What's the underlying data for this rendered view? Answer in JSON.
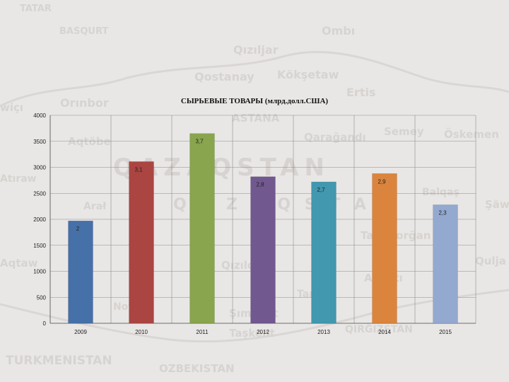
{
  "background": {
    "place_names": [
      "TATAR",
      "BASQURT",
      "Ombı",
      "Qızıljar",
      "Qostanay",
      "Kökşetaw",
      "Ertis",
      "Orınbor",
      "ASTANA",
      "Aqtöbe",
      "Qarağandı",
      "Semey",
      "Öskemen",
      "QAZAQSTAN",
      "Q A Z A Q S T A N",
      "Arał",
      "Taldıqorğan",
      "Almatı",
      "Qızılorda",
      "Şımkent",
      "Taşkent",
      "TURKMENISTAN",
      "OZBEKISTAN",
      "QIRĞIZSTAN",
      "Balqaş",
      "Qulja",
      "Şäw",
      "Atıraw",
      "Aqtaw",
      "Novi",
      "Taraz",
      "wiçı"
    ]
  },
  "chart_data": {
    "type": "bar",
    "title": "СЫРЬЕВЫЕ ТОВАРЫ (млрд.долл.США)",
    "categories": [
      "2009",
      "2010",
      "2011",
      "2012",
      "2013",
      "2014",
      "2015"
    ],
    "values": [
      1970,
      3110,
      3650,
      2820,
      2720,
      2880,
      2280
    ],
    "data_labels": [
      "2",
      "3,1",
      "3,7",
      "2,8",
      "2,7",
      "2,9",
      "2,3"
    ],
    "colors": [
      "#4670a8",
      "#aa4542",
      "#89a54e",
      "#71588f",
      "#4198af",
      "#db843d",
      "#93a9cf"
    ],
    "y_ticks": [
      0,
      500,
      1000,
      1500,
      2000,
      2500,
      3000,
      3500,
      4000
    ],
    "ylim": [
      0,
      4000
    ],
    "xlabel": "",
    "ylabel": "",
    "grid": true,
    "legend": "none"
  }
}
